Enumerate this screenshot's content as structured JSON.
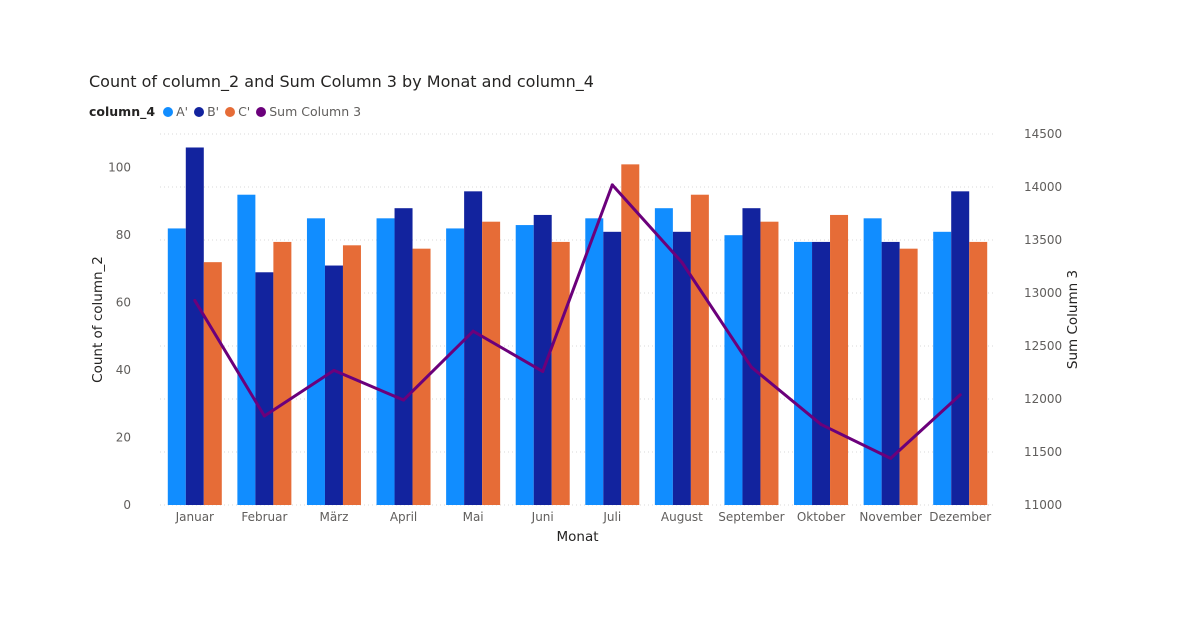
{
  "chart_data": {
    "type": "bar",
    "title": "Count of column_2 and Sum Column 3 by Monat and column_4",
    "xlabel": "Monat",
    "ylabel": "Count of column_2",
    "y2label": "Sum Column 3",
    "legend_title": "column_4",
    "legend_position": "top-left",
    "grid": true,
    "categories": [
      "Januar",
      "Februar",
      "März",
      "April",
      "Mai",
      "Juni",
      "Juli",
      "August",
      "September",
      "Oktober",
      "November",
      "Dezember"
    ],
    "ylim": [
      0,
      110
    ],
    "yticks": [
      0,
      20,
      40,
      60,
      80,
      100
    ],
    "y2lim": [
      11000,
      14500
    ],
    "y2ticks": [
      11000,
      11500,
      12000,
      12500,
      13000,
      13500,
      14000,
      14500
    ],
    "series": [
      {
        "name": "A'",
        "type": "bar",
        "axis": "left",
        "color": "#118DFF",
        "values": [
          82,
          92,
          85,
          85,
          82,
          83,
          85,
          88,
          80,
          78,
          85,
          81
        ]
      },
      {
        "name": "B'",
        "type": "bar",
        "axis": "left",
        "color": "#12239E",
        "values": [
          106,
          69,
          71,
          88,
          93,
          86,
          81,
          81,
          88,
          78,
          78,
          93
        ]
      },
      {
        "name": "C'",
        "type": "bar",
        "axis": "left",
        "color": "#E66C37",
        "values": [
          72,
          78,
          77,
          76,
          84,
          78,
          101,
          92,
          84,
          86,
          76,
          78
        ]
      },
      {
        "name": "Sum Column 3",
        "type": "line",
        "axis": "right",
        "color": "#6B007B",
        "values": [
          12930,
          11840,
          12270,
          11990,
          12640,
          12260,
          14020,
          13290,
          12300,
          11760,
          11440,
          12040
        ]
      }
    ]
  }
}
